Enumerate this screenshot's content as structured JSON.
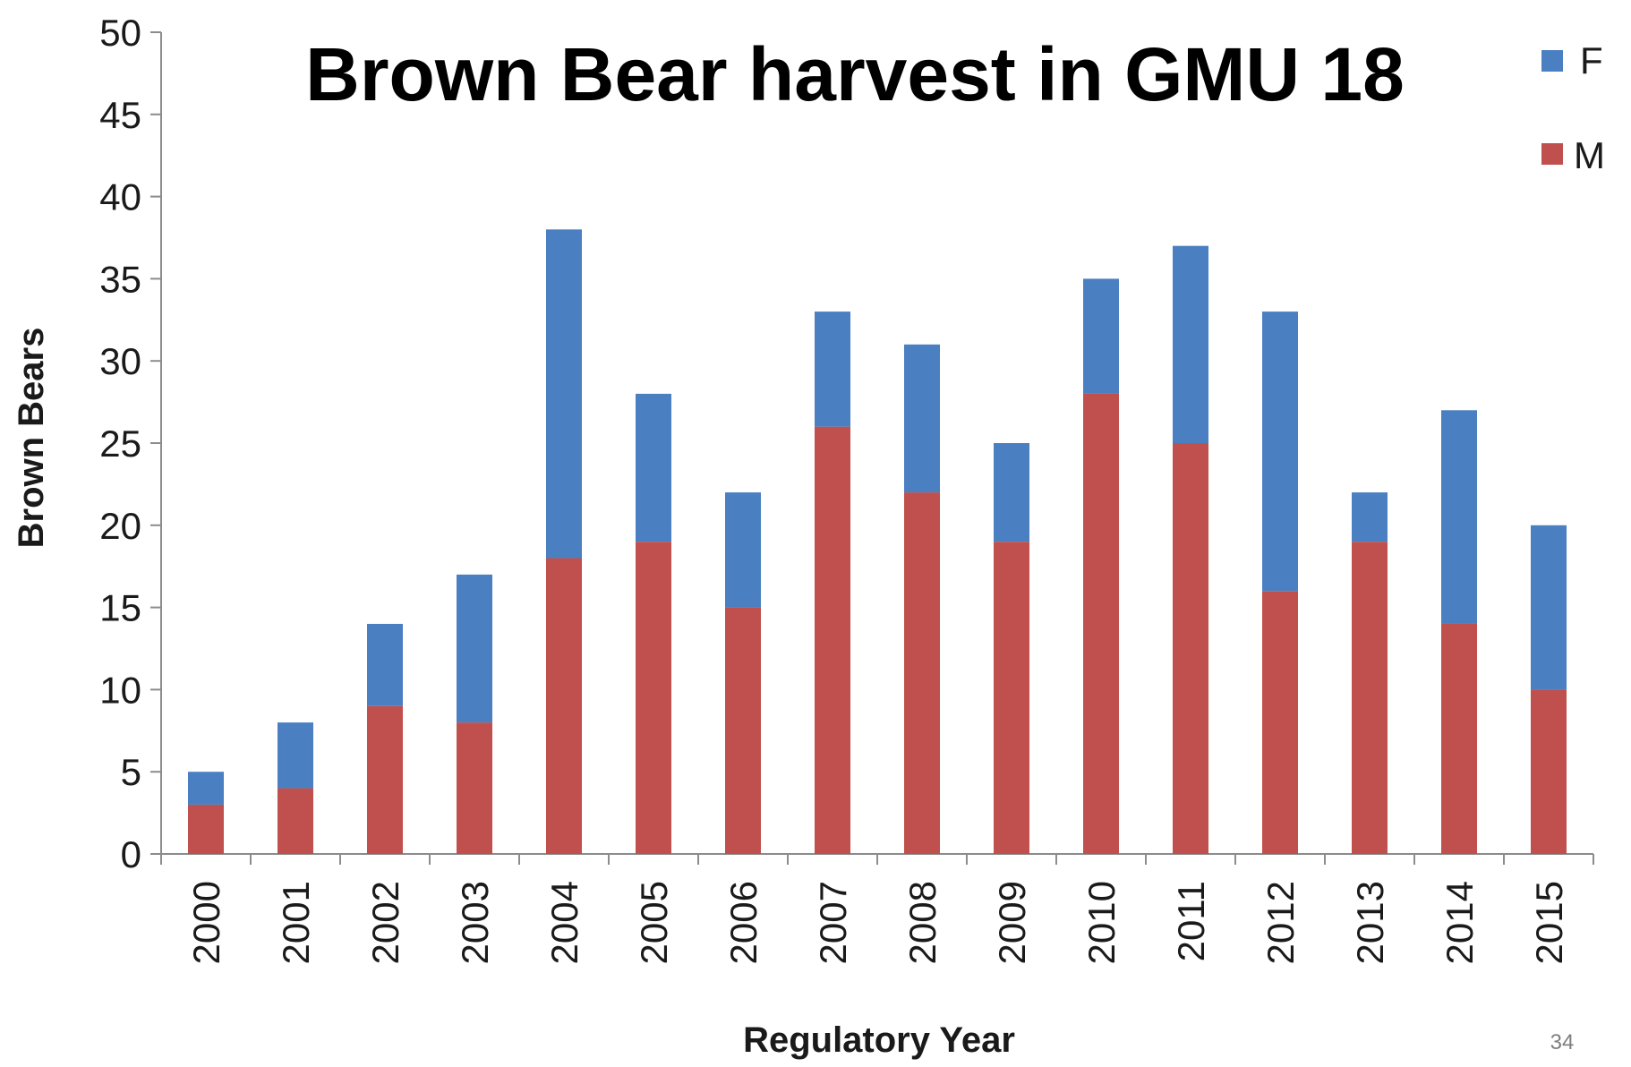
{
  "colors": {
    "F": "#4a7fc1",
    "M": "#c0504d",
    "axis": "#8c8c8c"
  },
  "page_number": "34",
  "chart_data": {
    "type": "bar",
    "stacked": true,
    "title": "Brown Bear harvest in GMU 18",
    "xlabel": "Regulatory Year",
    "ylabel": "Brown Bears",
    "ylim": [
      0,
      50
    ],
    "yticks": [
      "0",
      "5",
      "10",
      "15",
      "20",
      "25",
      "30",
      "35",
      "40",
      "45",
      "50"
    ],
    "grid": false,
    "legend_position": "top-right",
    "categories": [
      "2000",
      "2001",
      "2002",
      "2003",
      "2004",
      "2005",
      "2006",
      "2007",
      "2008",
      "2009",
      "2010",
      "2011",
      "2012",
      "2013",
      "2014",
      "2015"
    ],
    "series": [
      {
        "name": "M",
        "values": [
          3,
          4,
          9,
          8,
          18,
          19,
          15,
          26,
          22,
          19,
          28,
          25,
          16,
          19,
          14,
          10
        ]
      },
      {
        "name": "F",
        "values": [
          2,
          4,
          5,
          9,
          20,
          9,
          7,
          7,
          9,
          6,
          7,
          12,
          17,
          3,
          13,
          10
        ]
      }
    ],
    "legend": [
      {
        "label": "F",
        "color_key": "F"
      },
      {
        "label": "M",
        "color_key": "M"
      }
    ]
  }
}
